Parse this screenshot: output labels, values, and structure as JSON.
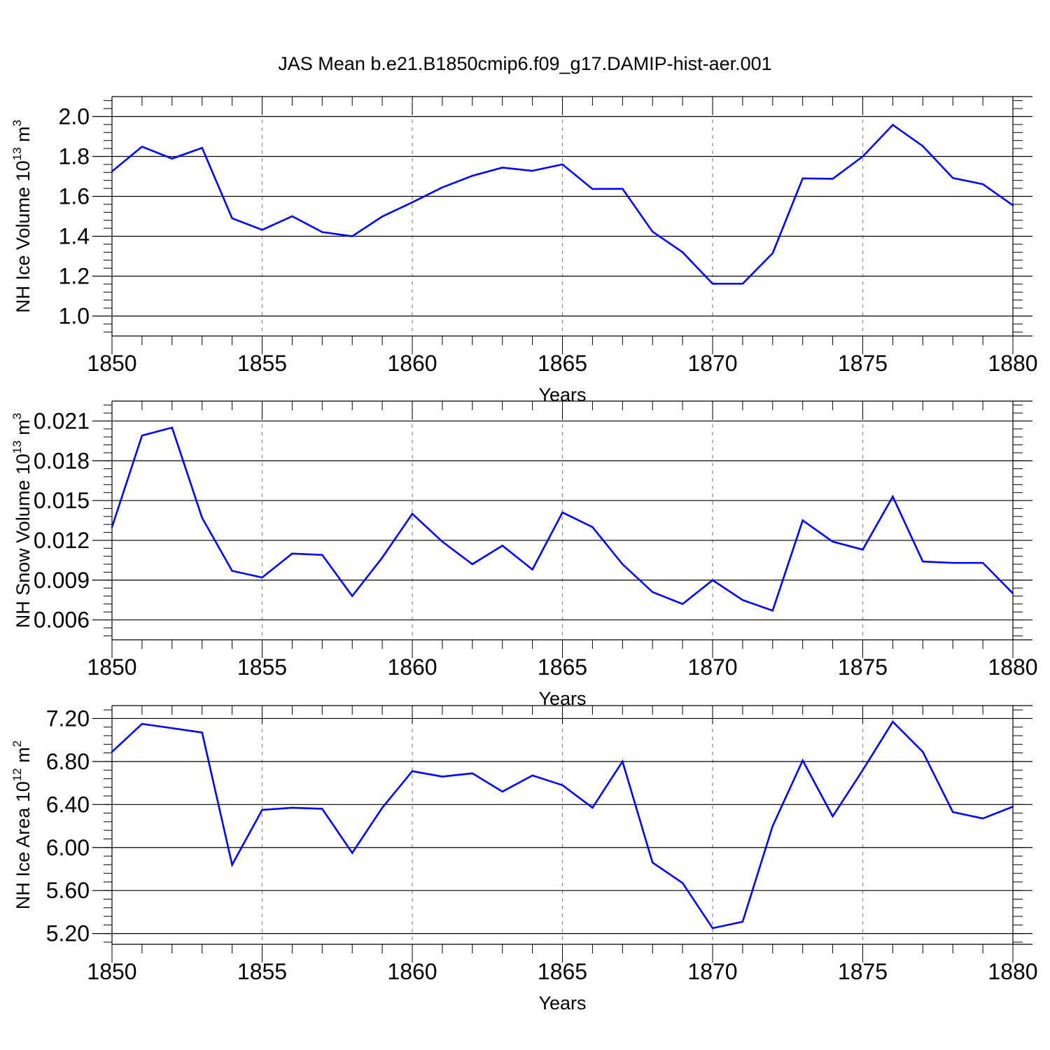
{
  "title": "JAS Mean b.e21.B1850cmip6.f09_g17.DAMIP-hist-aer.001",
  "chart_data": [
    {
      "type": "line",
      "title": "",
      "xlabel": "Years",
      "ylabel": {
        "base": "NH Ice Volume 10",
        "exp": "13",
        "unit": " m",
        "unit_exp": "3"
      },
      "xlim": [
        1850,
        1880
      ],
      "ylim": [
        0.9,
        2.1
      ],
      "y_ticks": [
        1.0,
        1.2,
        1.4,
        1.6,
        1.8,
        2.0
      ],
      "y_tick_labels": [
        "1.0",
        "1.2",
        "1.4",
        "1.6",
        "1.8",
        "2.0"
      ],
      "y_minor_step": 0.04,
      "x_ticks": [
        1850,
        1855,
        1860,
        1865,
        1870,
        1875,
        1880
      ],
      "x_tick_labels": [
        "1850",
        "1855",
        "1860",
        "1865",
        "1870",
        "1875",
        "1880"
      ],
      "gridlines": "x-major-dashed",
      "series": [
        {
          "name": "NH Ice Volume",
          "color": "#0000ff",
          "x": [
            1850,
            1851,
            1852,
            1853,
            1854,
            1855,
            1856,
            1857,
            1858,
            1859,
            1860,
            1861,
            1862,
            1863,
            1864,
            1865,
            1866,
            1867,
            1868,
            1869,
            1870,
            1871,
            1872,
            1873,
            1874,
            1875,
            1876,
            1877,
            1878,
            1879,
            1880
          ],
          "values": [
            1.725,
            1.849,
            1.789,
            1.843,
            1.49,
            1.432,
            1.5,
            1.421,
            1.4,
            1.499,
            1.57,
            1.645,
            1.703,
            1.744,
            1.728,
            1.76,
            1.637,
            1.638,
            1.423,
            1.32,
            1.162,
            1.162,
            1.315,
            1.69,
            1.688,
            1.8,
            1.958,
            1.852,
            1.692,
            1.661,
            1.555
          ]
        }
      ]
    },
    {
      "type": "line",
      "title": "",
      "xlabel": "Years",
      "ylabel": {
        "base": "NH Snow Volume 10",
        "exp": "13",
        "unit": " m",
        "unit_exp": "3"
      },
      "xlim": [
        1850,
        1880
      ],
      "ylim": [
        0.0045,
        0.0225
      ],
      "y_ticks": [
        0.006,
        0.009,
        0.012,
        0.015,
        0.018,
        0.021
      ],
      "y_tick_labels": [
        "0.006",
        "0.009",
        "0.012",
        "0.015",
        "0.018",
        "0.021"
      ],
      "y_minor_step": 0.0006,
      "x_ticks": [
        1850,
        1855,
        1860,
        1865,
        1870,
        1875,
        1880
      ],
      "x_tick_labels": [
        "1850",
        "1855",
        "1860",
        "1865",
        "1870",
        "1875",
        "1880"
      ],
      "gridlines": "x-major-dashed",
      "series": [
        {
          "name": "NH Snow Volume",
          "color": "#0000ff",
          "x": [
            1850,
            1851,
            1852,
            1853,
            1854,
            1855,
            1856,
            1857,
            1858,
            1859,
            1860,
            1861,
            1862,
            1863,
            1864,
            1865,
            1866,
            1867,
            1868,
            1869,
            1870,
            1871,
            1872,
            1873,
            1874,
            1875,
            1876,
            1877,
            1878,
            1879,
            1880
          ],
          "values": [
            0.013,
            0.0199,
            0.0205,
            0.0137,
            0.0097,
            0.0092,
            0.011,
            0.0109,
            0.0078,
            0.0107,
            0.014,
            0.0119,
            0.0102,
            0.0116,
            0.0098,
            0.0141,
            0.013,
            0.0102,
            0.0081,
            0.0072,
            0.009,
            0.0075,
            0.0067,
            0.0135,
            0.0119,
            0.0113,
            0.0153,
            0.0104,
            0.0103,
            0.0103,
            0.008
          ]
        }
      ]
    },
    {
      "type": "line",
      "title": "",
      "xlabel": "Years",
      "ylabel": {
        "base": "NH Ice Area 10",
        "exp": "12",
        "unit": " m",
        "unit_exp": "2"
      },
      "xlim": [
        1850,
        1880
      ],
      "ylim": [
        5.1,
        7.32
      ],
      "y_ticks": [
        5.2,
        5.6,
        6.0,
        6.4,
        6.8,
        7.2
      ],
      "y_tick_labels": [
        "5.20",
        "5.60",
        "6.00",
        "6.40",
        "6.80",
        "7.20"
      ],
      "y_minor_step": 0.08,
      "x_ticks": [
        1850,
        1855,
        1860,
        1865,
        1870,
        1875,
        1880
      ],
      "x_tick_labels": [
        "1850",
        "1855",
        "1860",
        "1865",
        "1870",
        "1875",
        "1880"
      ],
      "gridlines": "x-major-dashed",
      "series": [
        {
          "name": "NH Ice Area",
          "color": "#0000ff",
          "x": [
            1850,
            1851,
            1852,
            1853,
            1854,
            1855,
            1856,
            1857,
            1858,
            1859,
            1860,
            1861,
            1862,
            1863,
            1864,
            1865,
            1866,
            1867,
            1868,
            1869,
            1870,
            1871,
            1872,
            1873,
            1874,
            1875,
            1876,
            1877,
            1878,
            1879,
            1880
          ],
          "values": [
            6.89,
            7.15,
            7.11,
            7.07,
            5.84,
            6.35,
            6.37,
            6.36,
            5.95,
            6.37,
            6.71,
            6.66,
            6.69,
            6.52,
            6.67,
            6.58,
            6.37,
            6.8,
            5.86,
            5.67,
            5.25,
            5.31,
            6.2,
            6.81,
            6.29,
            6.72,
            7.17,
            6.89,
            6.33,
            6.27,
            6.38
          ]
        }
      ]
    }
  ]
}
